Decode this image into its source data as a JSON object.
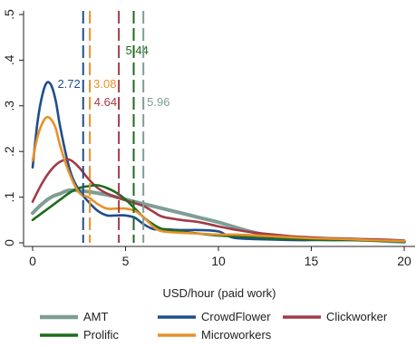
{
  "chart_data": {
    "type": "line",
    "title": "",
    "xlabel": "USD/hour (paid work)",
    "ylabel": "",
    "xlim": [
      -1,
      20.5
    ],
    "ylim": [
      -0.02,
      0.52
    ],
    "xticks": [
      0,
      5,
      10,
      15,
      20
    ],
    "xtick_labels": [
      "0",
      "5",
      "10",
      "15",
      "20"
    ],
    "yticks": [
      0,
      0.1,
      0.2,
      0.3,
      0.4,
      0.5
    ],
    "ytick_labels": [
      "0",
      ".1",
      ".2",
      ".3",
      ".4",
      ".5"
    ],
    "grid": false,
    "legend_position": "bottom",
    "series": [
      {
        "name": "AMT",
        "color": "#7d9e94",
        "x": [
          0,
          0.5,
          1,
          1.5,
          2,
          3,
          4,
          5,
          6,
          7,
          8,
          9,
          10,
          11,
          12,
          13,
          14,
          15,
          16,
          17,
          18,
          19,
          20
        ],
        "y": [
          0.065,
          0.085,
          0.1,
          0.108,
          0.115,
          0.112,
          0.105,
          0.095,
          0.085,
          0.075,
          0.065,
          0.055,
          0.045,
          0.033,
          0.022,
          0.015,
          0.011,
          0.01,
          0.009,
          0.008,
          0.006,
          0.004,
          0.002
        ]
      },
      {
        "name": "CrowdFlower",
        "color": "#1f4e8c",
        "x": [
          0,
          0.25,
          0.5,
          0.75,
          1,
          1.25,
          1.5,
          2,
          2.5,
          3,
          3.5,
          4,
          4.5,
          5,
          5.5,
          6,
          6.5,
          7,
          8,
          9,
          10,
          10.5,
          11,
          12,
          13,
          14,
          15,
          16,
          17,
          18,
          19,
          20
        ],
        "y": [
          0.165,
          0.26,
          0.32,
          0.35,
          0.345,
          0.31,
          0.25,
          0.16,
          0.115,
          0.09,
          0.07,
          0.06,
          0.06,
          0.06,
          0.055,
          0.04,
          0.03,
          0.03,
          0.028,
          0.028,
          0.025,
          0.015,
          0.01,
          0.008,
          0.007,
          0.006,
          0.006,
          0.006,
          0.006,
          0.006,
          0.006,
          0.005
        ]
      },
      {
        "name": "Clickworker",
        "color": "#a23b47",
        "x": [
          0,
          0.5,
          1,
          1.5,
          2,
          2.5,
          3,
          3.5,
          4,
          4.5,
          5,
          5.5,
          6,
          6.5,
          7,
          8,
          9,
          10,
          11,
          12,
          13,
          14,
          15,
          16,
          17,
          18,
          19,
          20
        ],
        "y": [
          0.09,
          0.13,
          0.16,
          0.178,
          0.182,
          0.165,
          0.14,
          0.12,
          0.108,
          0.1,
          0.093,
          0.087,
          0.08,
          0.068,
          0.057,
          0.05,
          0.045,
          0.036,
          0.028,
          0.022,
          0.018,
          0.014,
          0.012,
          0.01,
          0.009,
          0.008,
          0.007,
          0.005
        ]
      },
      {
        "name": "Prolific",
        "color": "#1f6b1f",
        "x": [
          0,
          0.5,
          1,
          1.5,
          2,
          2.5,
          3,
          3.5,
          4,
          4.5,
          5,
          5.5,
          6,
          6.5,
          7,
          8,
          9,
          10,
          11,
          12,
          13,
          14,
          15,
          16,
          17,
          18,
          19,
          20
        ],
        "y": [
          0.05,
          0.065,
          0.08,
          0.095,
          0.11,
          0.12,
          0.124,
          0.126,
          0.12,
          0.11,
          0.095,
          0.075,
          0.055,
          0.04,
          0.03,
          0.025,
          0.02,
          0.016,
          0.014,
          0.012,
          0.01,
          0.008,
          0.007,
          0.006,
          0.006,
          0.005,
          0.004,
          0.003
        ]
      },
      {
        "name": "Microworkers",
        "color": "#e8912a",
        "x": [
          0,
          0.25,
          0.5,
          0.75,
          1,
          1.25,
          1.5,
          2,
          2.5,
          3,
          3.5,
          4,
          4.5,
          5,
          5.5,
          6,
          6.5,
          7,
          8,
          9,
          10,
          11,
          12,
          13,
          14,
          15,
          16,
          17,
          18,
          19,
          20
        ],
        "y": [
          0.18,
          0.23,
          0.26,
          0.275,
          0.27,
          0.25,
          0.21,
          0.15,
          0.11,
          0.1,
          0.085,
          0.075,
          0.075,
          0.075,
          0.07,
          0.055,
          0.035,
          0.025,
          0.022,
          0.02,
          0.018,
          0.018,
          0.016,
          0.014,
          0.012,
          0.01,
          0.009,
          0.008,
          0.006,
          0.005,
          0.004
        ]
      }
    ],
    "vertical_lines": [
      {
        "series": "CrowdFlower",
        "x": 2.72,
        "label": "2.72",
        "color": "#1f4e8c"
      },
      {
        "series": "Microworkers",
        "x": 3.08,
        "label": "3.08",
        "color": "#e8912a"
      },
      {
        "series": "Clickworker",
        "x": 4.64,
        "label": "4.64",
        "color": "#a23b47"
      },
      {
        "series": "Prolific",
        "x": 5.44,
        "label": "5.44",
        "color": "#1f6b1f"
      },
      {
        "series": "AMT",
        "x": 5.96,
        "label": "5.96",
        "color": "#7d9e94"
      }
    ]
  }
}
